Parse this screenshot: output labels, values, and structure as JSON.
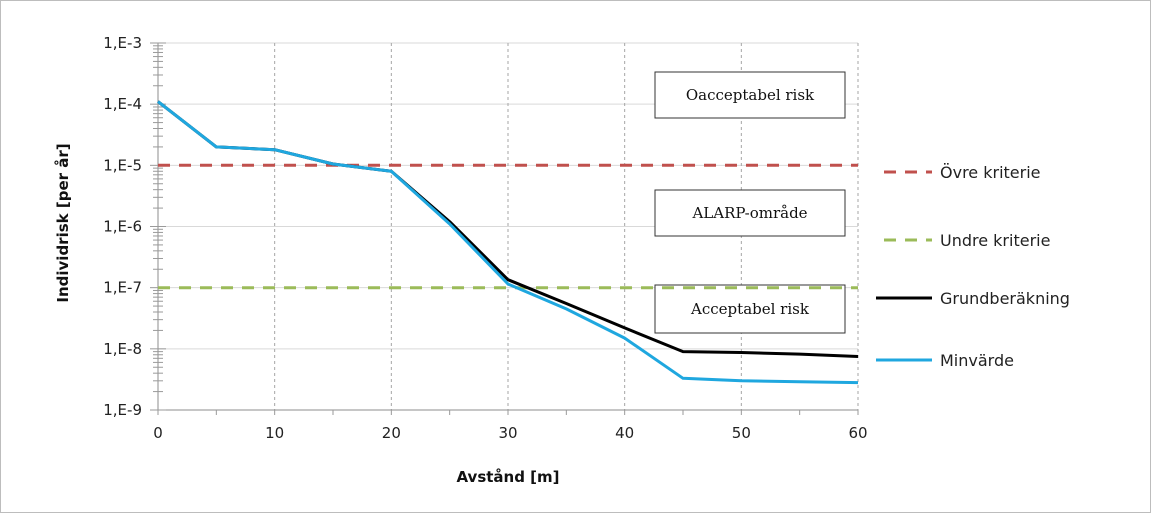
{
  "chart_data": {
    "type": "line",
    "xlabel": "Avstånd [m]",
    "ylabel": "Individrisk [per år]",
    "xlim": [
      0,
      60
    ],
    "ylim": [
      1e-09,
      0.001
    ],
    "y_scale": "log",
    "x_ticks": [
      {
        "value": 0,
        "label": "0"
      },
      {
        "value": 10,
        "label": "10"
      },
      {
        "value": 20,
        "label": "20"
      },
      {
        "value": 30,
        "label": "30"
      },
      {
        "value": 40,
        "label": "40"
      },
      {
        "value": 50,
        "label": "50"
      },
      {
        "value": 60,
        "label": "60"
      }
    ],
    "y_ticks": [
      {
        "value": 0.001,
        "label": "1,E-3"
      },
      {
        "value": 0.0001,
        "label": "1,E-4"
      },
      {
        "value": 1e-05,
        "label": "1,E-5"
      },
      {
        "value": 1e-06,
        "label": "1,E-6"
      },
      {
        "value": 1e-07,
        "label": "1,E-7"
      },
      {
        "value": 1e-08,
        "label": "1,E-8"
      },
      {
        "value": 1e-09,
        "label": "1,E-9"
      }
    ],
    "grid": "vertical dashed",
    "legend_position": "right",
    "series": [
      {
        "name": "Övre kriterie",
        "color": "#c0504d",
        "dash": true,
        "x": [
          0,
          60
        ],
        "y": [
          1e-05,
          1e-05
        ]
      },
      {
        "name": "Undre kriterie",
        "color": "#9bbb59",
        "dash": true,
        "x": [
          0,
          60
        ],
        "y": [
          1e-07,
          1e-07
        ]
      },
      {
        "name": "Grundberäkning",
        "color": "#000000",
        "dash": false,
        "x": [
          0,
          5,
          10,
          15,
          20,
          25,
          30,
          35,
          40,
          45,
          50,
          55,
          60
        ],
        "y": [
          0.00011,
          2e-05,
          1.8e-05,
          1.05e-05,
          8e-06,
          1.2e-06,
          1.35e-07,
          5.5e-08,
          2.2e-08,
          9e-09,
          8.7e-09,
          8.2e-09,
          7.5e-09
        ]
      },
      {
        "name": "Minvärde",
        "color": "#1fa7df",
        "dash": false,
        "x": [
          0,
          5,
          10,
          15,
          20,
          25,
          30,
          35,
          40,
          45,
          50,
          55,
          60
        ],
        "y": [
          0.00011,
          2e-05,
          1.8e-05,
          1.05e-05,
          8e-06,
          1.1e-06,
          1.15e-07,
          4.5e-08,
          1.5e-08,
          3.3e-09,
          3e-09,
          2.9e-09,
          2.8e-09
        ]
      }
    ],
    "annotations": [
      {
        "text": "Oacceptabel risk"
      },
      {
        "text": "ALARP-område"
      },
      {
        "text": "Acceptabel risk"
      }
    ]
  }
}
